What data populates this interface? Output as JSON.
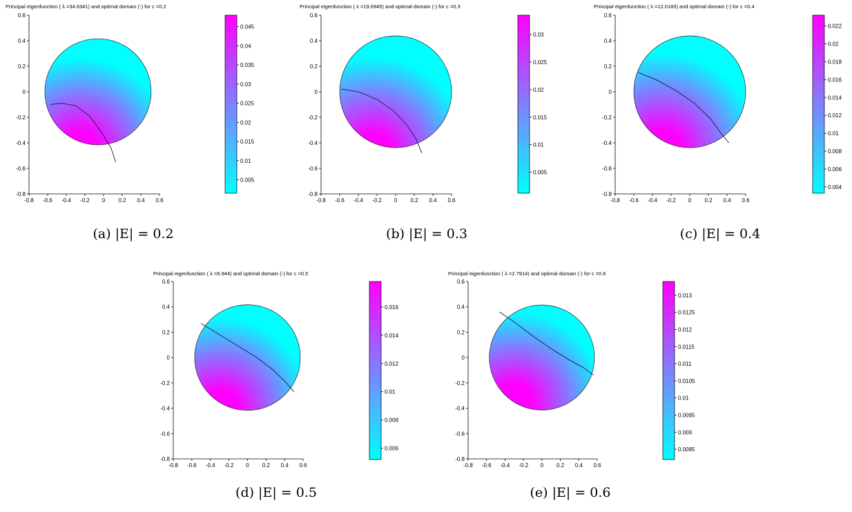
{
  "chart_data": [
    {
      "type": "heatmap",
      "title": "Principal eigenfunction (  λ =34.6341) and optimal domain (-) for c =0.2",
      "caption": "(a)  |E| = 0.2",
      "xlim": [
        -0.8,
        0.6
      ],
      "ylim": [
        -0.8,
        0.6
      ],
      "x_ticks": [
        "-0.8",
        "-0.6",
        "-0.4",
        "-0.2",
        "0",
        "0.2",
        "0.4",
        "0.6"
      ],
      "y_ticks": [
        "0.6",
        "0.4",
        "0.2",
        "0",
        "-0.2",
        "-0.4",
        "-0.6",
        "-0.8"
      ],
      "colorbar": {
        "min": 0.0015,
        "max": 0.048,
        "ticks": [
          "0.045",
          "0.04",
          "0.035",
          "0.03",
          "0.025",
          "0.02",
          "0.015",
          "0.01",
          "0.005"
        ]
      },
      "disc": {
        "center": [
          -0.06,
          0.0
        ],
        "radius": 0.57
      },
      "boundary_curve": [
        [
          -0.57,
          -0.1
        ],
        [
          -0.45,
          -0.09
        ],
        [
          -0.3,
          -0.11
        ],
        [
          -0.15,
          -0.19
        ],
        [
          -0.02,
          -0.32
        ],
        [
          0.08,
          -0.44
        ],
        [
          0.13,
          -0.55
        ]
      ],
      "max_point": [
        -0.25,
        -0.45
      ],
      "colors": {
        "low": "#00ffff",
        "high": "#ff00ff"
      },
      "grid": false
    },
    {
      "type": "heatmap",
      "title": "Principal eigenfunction (  λ =19.6945) and optimal domain (-) for c =0.3",
      "caption": "(b)  |E| = 0.3",
      "xlim": [
        -0.8,
        0.6
      ],
      "ylim": [
        -0.8,
        0.6
      ],
      "x_ticks": [
        "-0.8",
        "-0.6",
        "-0.4",
        "-0.2",
        "0",
        "0.2",
        "0.4",
        "0.6"
      ],
      "y_ticks": [
        "0.6",
        "0.4",
        "0.2",
        "0",
        "-0.2",
        "-0.4",
        "-0.6",
        "-0.8"
      ],
      "colorbar": {
        "min": 0.0012,
        "max": 0.0335,
        "ticks": [
          "0.03",
          "0.025",
          "0.02",
          "0.015",
          "0.01",
          "0.005"
        ]
      },
      "disc": {
        "center": [
          0.0,
          0.0
        ],
        "radius": 0.6
      },
      "boundary_curve": [
        [
          -0.58,
          0.02
        ],
        [
          -0.4,
          0.0
        ],
        [
          -0.2,
          -0.06
        ],
        [
          -0.02,
          -0.15
        ],
        [
          0.12,
          -0.26
        ],
        [
          0.22,
          -0.37
        ],
        [
          0.28,
          -0.48
        ]
      ],
      "max_point": [
        -0.25,
        -0.48
      ],
      "colors": {
        "low": "#00ffff",
        "high": "#ff00ff"
      },
      "grid": false
    },
    {
      "type": "heatmap",
      "title": "Principal eigenfunction (  λ =12.0183) and optimal domain (-) for c =0.4",
      "caption": "(c)  |E| = 0.4",
      "xlim": [
        -0.8,
        0.6
      ],
      "ylim": [
        -0.8,
        0.6
      ],
      "x_ticks": [
        "-0.8",
        "-0.6",
        "-0.4",
        "-0.2",
        "0",
        "0.2",
        "0.4",
        "0.6"
      ],
      "y_ticks": [
        "0.6",
        "0.4",
        "0.2",
        "0",
        "-0.2",
        "-0.4",
        "-0.6",
        "-0.8"
      ],
      "colorbar": {
        "min": 0.0033,
        "max": 0.0232,
        "ticks": [
          "0.022",
          "0.02",
          "0.018",
          "0.016",
          "0.014",
          "0.012",
          "0.01",
          "0.008",
          "0.006",
          "0.004"
        ]
      },
      "disc": {
        "center": [
          0.0,
          0.0
        ],
        "radius": 0.6
      },
      "boundary_curve": [
        [
          -0.55,
          0.15
        ],
        [
          -0.35,
          0.09
        ],
        [
          -0.15,
          0.01
        ],
        [
          0.05,
          -0.09
        ],
        [
          0.22,
          -0.21
        ],
        [
          0.35,
          -0.34
        ],
        [
          0.42,
          -0.4
        ]
      ],
      "max_point": [
        -0.3,
        -0.45
      ],
      "colors": {
        "low": "#00ffff",
        "high": "#ff00ff"
      },
      "grid": false
    },
    {
      "type": "heatmap",
      "title": "Principal eigenfunction (  λ =6.944) and optimal domain (-) for c =0.5",
      "caption": "(d)  |E| = 0.5",
      "xlim": [
        -0.8,
        0.6
      ],
      "ylim": [
        -0.8,
        0.6
      ],
      "x_ticks": [
        "-0.8",
        "-0.6",
        "-0.4",
        "-0.2",
        "0",
        "0.2",
        "0.4",
        "0.6"
      ],
      "y_ticks": [
        "0.6",
        "0.4",
        "0.2",
        "0",
        "-0.2",
        "-0.4",
        "-0.6",
        "-0.8"
      ],
      "colorbar": {
        "min": 0.0052,
        "max": 0.0178,
        "ticks": [
          "0.016",
          "0.014",
          "0.012",
          "0.01",
          "0.008",
          "0.006"
        ]
      },
      "disc": {
        "center": [
          0.0,
          0.0
        ],
        "radius": 0.57
      },
      "boundary_curve": [
        [
          -0.5,
          0.27
        ],
        [
          -0.3,
          0.18
        ],
        [
          -0.1,
          0.09
        ],
        [
          0.1,
          0.0
        ],
        [
          0.28,
          -0.1
        ],
        [
          0.42,
          -0.2
        ],
        [
          0.5,
          -0.27
        ]
      ],
      "max_point": [
        -0.3,
        -0.4
      ],
      "colors": {
        "low": "#00ffff",
        "high": "#ff00ff"
      },
      "grid": false
    },
    {
      "type": "heatmap",
      "title": "Principal eigenfunction (  λ =2.7914) and optimal domain (-) for c =0.6",
      "caption": "(e)  |E| = 0.6",
      "xlim": [
        -0.8,
        0.6
      ],
      "ylim": [
        -0.8,
        0.6
      ],
      "x_ticks": [
        "-0.8",
        "-0.6",
        "-0.4",
        "-0.2",
        "0",
        "0.2",
        "0.4",
        "0.6"
      ],
      "y_ticks": [
        "0.6",
        "0.4",
        "0.2",
        "0",
        "-0.2",
        "-0.4",
        "-0.6",
        "-0.8"
      ],
      "colorbar": {
        "min": 0.0082,
        "max": 0.0134,
        "ticks": [
          "0.013",
          "0.0125",
          "0.012",
          "0.0115",
          "0.011",
          "0.0105",
          "0.01",
          "0.0095",
          "0.009",
          "0.0085"
        ]
      },
      "disc": {
        "center": [
          0.0,
          0.0
        ],
        "radius": 0.57
      },
      "boundary_curve": [
        [
          -0.46,
          0.36
        ],
        [
          -0.3,
          0.28
        ],
        [
          -0.1,
          0.17
        ],
        [
          0.1,
          0.07
        ],
        [
          0.3,
          -0.02
        ],
        [
          0.45,
          -0.08
        ],
        [
          0.56,
          -0.14
        ]
      ],
      "max_point": [
        -0.3,
        -0.35
      ],
      "colors": {
        "low": "#00ffff",
        "high": "#ff00ff"
      },
      "grid": false
    }
  ]
}
